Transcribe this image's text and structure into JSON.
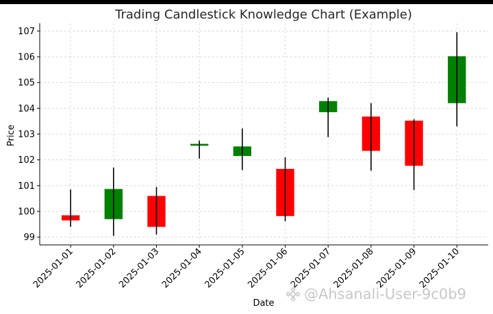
{
  "chart_data": {
    "type": "candlestick",
    "title": "Trading Candlestick Knowledge Chart (Example)",
    "xlabel": "Date",
    "ylabel": "Price",
    "ylim": [
      98.7,
      107.3
    ],
    "yticks": [
      99,
      100,
      101,
      102,
      103,
      104,
      105,
      106,
      107
    ],
    "grid": true,
    "colors": {
      "up": "#008000",
      "down": "#ff0000",
      "wick": "#000000"
    },
    "candles": [
      {
        "date": "2025-01-01",
        "open": 99.85,
        "close": 99.65,
        "high": 100.85,
        "low": 99.4
      },
      {
        "date": "2025-01-02",
        "open": 99.7,
        "close": 100.87,
        "high": 101.7,
        "low": 99.05
      },
      {
        "date": "2025-01-03",
        "open": 100.6,
        "close": 99.4,
        "high": 100.95,
        "low": 99.1
      },
      {
        "date": "2025-01-04",
        "open": 102.55,
        "close": 102.62,
        "high": 102.75,
        "low": 102.05
      },
      {
        "date": "2025-01-05",
        "open": 102.15,
        "close": 102.52,
        "high": 103.22,
        "low": 101.6
      },
      {
        "date": "2025-01-06",
        "open": 101.65,
        "close": 99.82,
        "high": 102.1,
        "low": 99.62
      },
      {
        "date": "2025-01-07",
        "open": 103.85,
        "close": 104.28,
        "high": 104.42,
        "low": 102.88
      },
      {
        "date": "2025-01-08",
        "open": 103.68,
        "close": 102.35,
        "high": 104.2,
        "low": 101.58
      },
      {
        "date": "2025-01-09",
        "open": 103.52,
        "close": 101.77,
        "high": 103.58,
        "low": 100.83
      },
      {
        "date": "2025-01-10",
        "open": 104.2,
        "close": 106.02,
        "high": 106.95,
        "low": 103.3
      }
    ]
  },
  "watermark": {
    "text": "@Ahsanali-User-9c0b9",
    "icon": "binance-logo-icon"
  }
}
